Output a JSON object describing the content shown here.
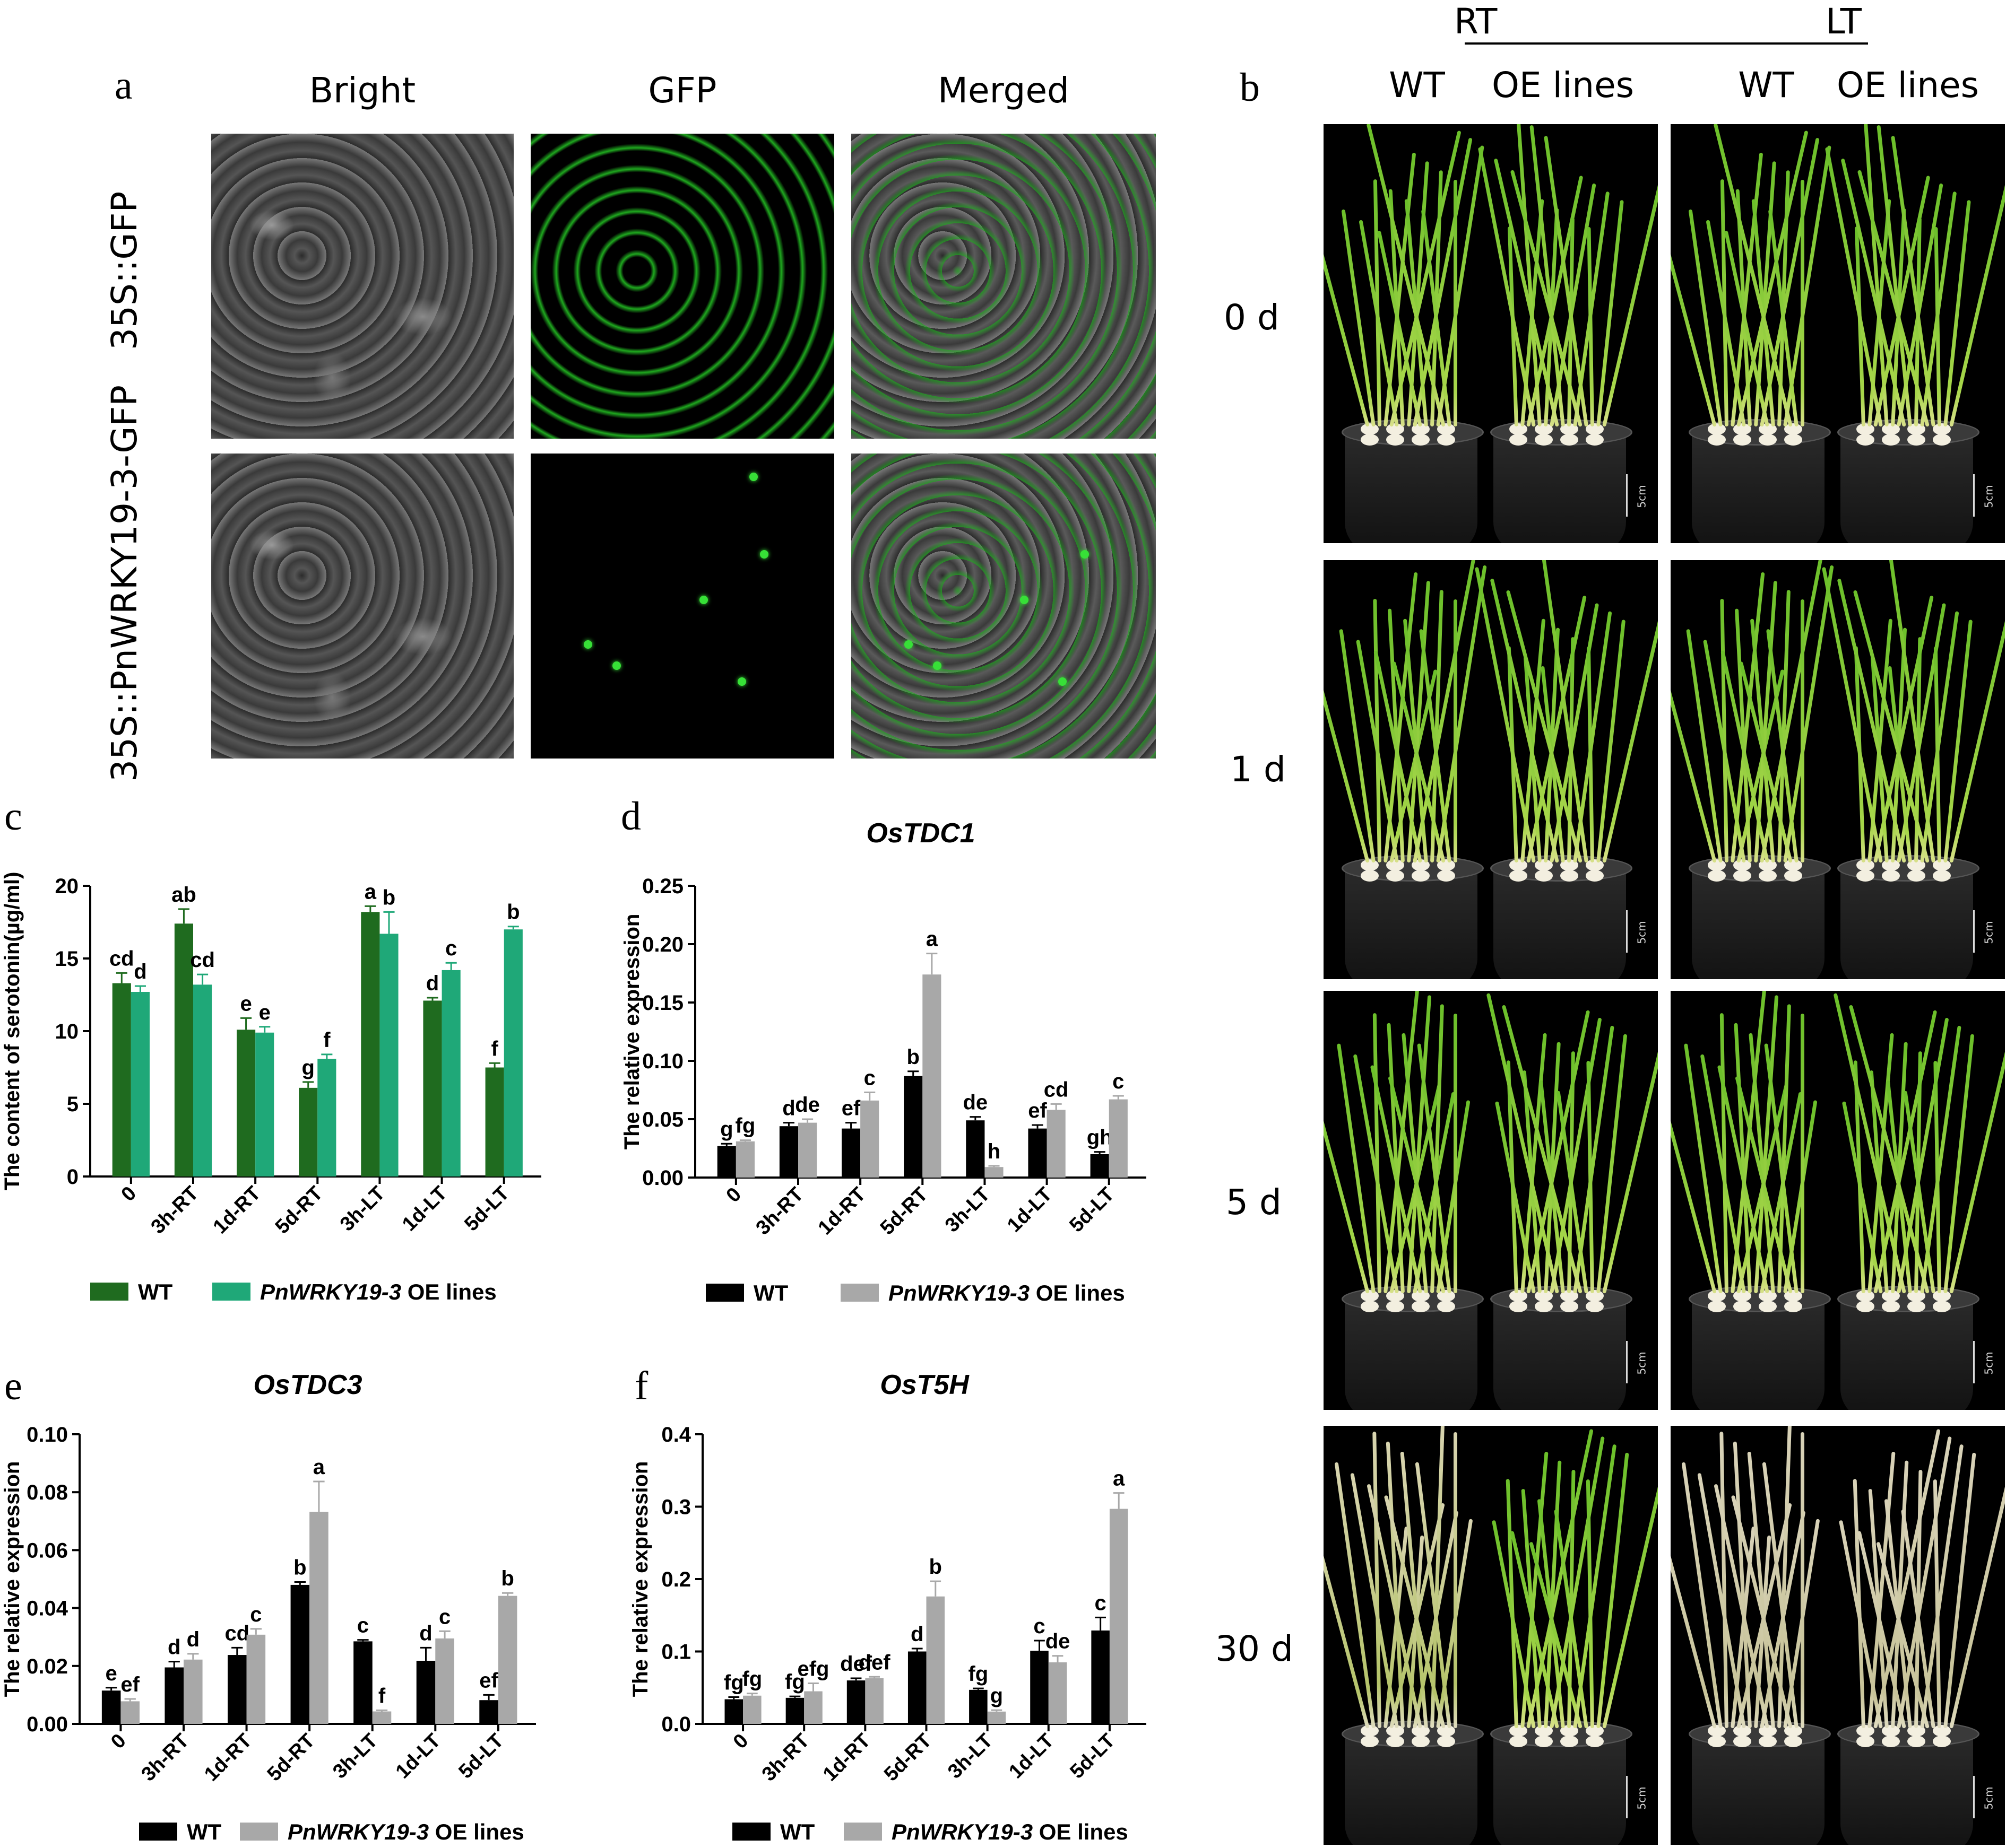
{
  "panel_a": {
    "letter": "a",
    "col_headers": [
      "Bright",
      "GFP",
      "Merged"
    ],
    "row_labels": [
      "35S::GFP",
      "35S::PnWRKY19-3-GFP"
    ]
  },
  "panel_b": {
    "letter": "b",
    "group_headers": [
      "RT",
      "LT"
    ],
    "sub_headers": [
      "WT",
      "OE lines",
      "WT",
      "OE lines"
    ],
    "row_labels": [
      "0 d",
      "1 d",
      "5 d",
      "30 d"
    ],
    "scale_label": "5cm"
  },
  "colors": {
    "wt_green": "#1f6b1f",
    "oe_green": "#1fa878",
    "wt_black": "#000000",
    "oe_gray": "#a8a8a8"
  },
  "chart_data": [
    {
      "panel": "c",
      "type": "bar",
      "title": "",
      "ylabel": "The content of serotonin(µg/ml)",
      "ylim": [
        0,
        20
      ],
      "yticks": [
        0,
        5,
        10,
        15,
        20
      ],
      "categories": [
        "0",
        "3h-RT",
        "1d-RT",
        "5d-RT",
        "3h-LT",
        "1d-LT",
        "5d-LT"
      ],
      "series": [
        {
          "name": "WT",
          "italic_prefix": "",
          "color": "#1f6b1f",
          "values": [
            13.3,
            17.4,
            10.1,
            6.1,
            18.2,
            12.1,
            7.5
          ],
          "errors": [
            0.7,
            1.0,
            0.8,
            0.4,
            0.4,
            0.2,
            0.3
          ],
          "letters": [
            "cd",
            "ab",
            "e",
            "g",
            "a",
            "d",
            "f"
          ]
        },
        {
          "name": "OE lines",
          "italic_prefix": "PnWRKY19-3",
          "color": "#1fa878",
          "values": [
            12.7,
            13.2,
            9.9,
            8.1,
            16.7,
            14.2,
            17.0
          ],
          "errors": [
            0.4,
            0.7,
            0.4,
            0.3,
            1.5,
            0.5,
            0.2
          ],
          "letters": [
            "d",
            "cd",
            "e",
            "f",
            "b",
            "c",
            "b"
          ]
        }
      ]
    },
    {
      "panel": "d",
      "type": "bar",
      "title": "OsTDC1",
      "ylabel": "The relative expression",
      "ylim": [
        0,
        0.25
      ],
      "yticks": [
        "0.00",
        "0.05",
        "0.10",
        "0.15",
        "0.20",
        "0.25"
      ],
      "categories": [
        "0",
        "3h-RT",
        "1d-RT",
        "5d-RT",
        "3h-LT",
        "1d-LT",
        "5d-LT"
      ],
      "series": [
        {
          "name": "WT",
          "italic_prefix": "",
          "color": "#000000",
          "values": [
            0.027,
            0.044,
            0.042,
            0.087,
            0.049,
            0.042,
            0.02
          ],
          "errors": [
            0.002,
            0.003,
            0.005,
            0.004,
            0.003,
            0.003,
            0.002
          ],
          "letters": [
            "g",
            "d",
            "ef",
            "b",
            "de",
            "ef",
            "gh"
          ]
        },
        {
          "name": "OE lines",
          "italic_prefix": "PnWRKY19-3",
          "color": "#a8a8a8",
          "values": [
            0.031,
            0.047,
            0.066,
            0.174,
            0.009,
            0.058,
            0.067
          ],
          "errors": [
            0.001,
            0.003,
            0.007,
            0.018,
            0.001,
            0.005,
            0.003
          ],
          "letters": [
            "fg",
            "de",
            "c",
            "a",
            "h",
            "cd",
            "c"
          ]
        }
      ]
    },
    {
      "panel": "e",
      "type": "bar",
      "title": "OsTDC3",
      "ylabel": "The relative expression",
      "ylim": [
        0,
        0.1
      ],
      "yticks": [
        "0.00",
        "0.02",
        "0.04",
        "0.06",
        "0.08",
        "0.10"
      ],
      "categories": [
        "0",
        "3h-RT",
        "1d-RT",
        "5d-RT",
        "3h-LT",
        "1d-LT",
        "5d-LT"
      ],
      "series": [
        {
          "name": "WT",
          "italic_prefix": "",
          "color": "#000000",
          "values": [
            0.0115,
            0.0195,
            0.0238,
            0.048,
            0.0285,
            0.0218,
            0.0082
          ],
          "errors": [
            0.001,
            0.002,
            0.0025,
            0.001,
            0.0005,
            0.0045,
            0.0018
          ],
          "letters": [
            "e",
            "d",
            "cd",
            "b",
            "c",
            "d",
            "ef"
          ]
        },
        {
          "name": "OE lines",
          "italic_prefix": "PnWRKY19-3",
          "color": "#a8a8a8",
          "values": [
            0.0078,
            0.0222,
            0.0308,
            0.0732,
            0.0043,
            0.0295,
            0.0442
          ],
          "errors": [
            0.0008,
            0.002,
            0.002,
            0.0105,
            0.0004,
            0.0025,
            0.001
          ],
          "letters": [
            "ef",
            "d",
            "c",
            "a",
            "f",
            "c",
            "b"
          ]
        }
      ]
    },
    {
      "panel": "f",
      "type": "bar",
      "title": "OsT5H",
      "ylabel": "The relative expression",
      "ylim": [
        0,
        0.4
      ],
      "yticks": [
        "0.0",
        "0.1",
        "0.2",
        "0.3",
        "0.4"
      ],
      "categories": [
        "0",
        "3h-RT",
        "1d-RT",
        "5d-RT",
        "3h-LT",
        "1d-LT",
        "5d-LT"
      ],
      "series": [
        {
          "name": "WT",
          "italic_prefix": "",
          "color": "#000000",
          "values": [
            0.034,
            0.036,
            0.06,
            0.1,
            0.047,
            0.101,
            0.129
          ],
          "errors": [
            0.003,
            0.002,
            0.003,
            0.004,
            0.002,
            0.014,
            0.018
          ],
          "letters": [
            "fg",
            "fg",
            "def",
            "d",
            "fg",
            "c",
            "c"
          ]
        },
        {
          "name": "OE lines",
          "italic_prefix": "PnWRKY19-3",
          "color": "#a8a8a8",
          "values": [
            0.039,
            0.045,
            0.063,
            0.176,
            0.017,
            0.085,
            0.297
          ],
          "errors": [
            0.003,
            0.011,
            0.002,
            0.021,
            0.002,
            0.009,
            0.022
          ],
          "letters": [
            "fg",
            "efg",
            "def",
            "b",
            "g",
            "de",
            "a"
          ]
        }
      ]
    }
  ]
}
